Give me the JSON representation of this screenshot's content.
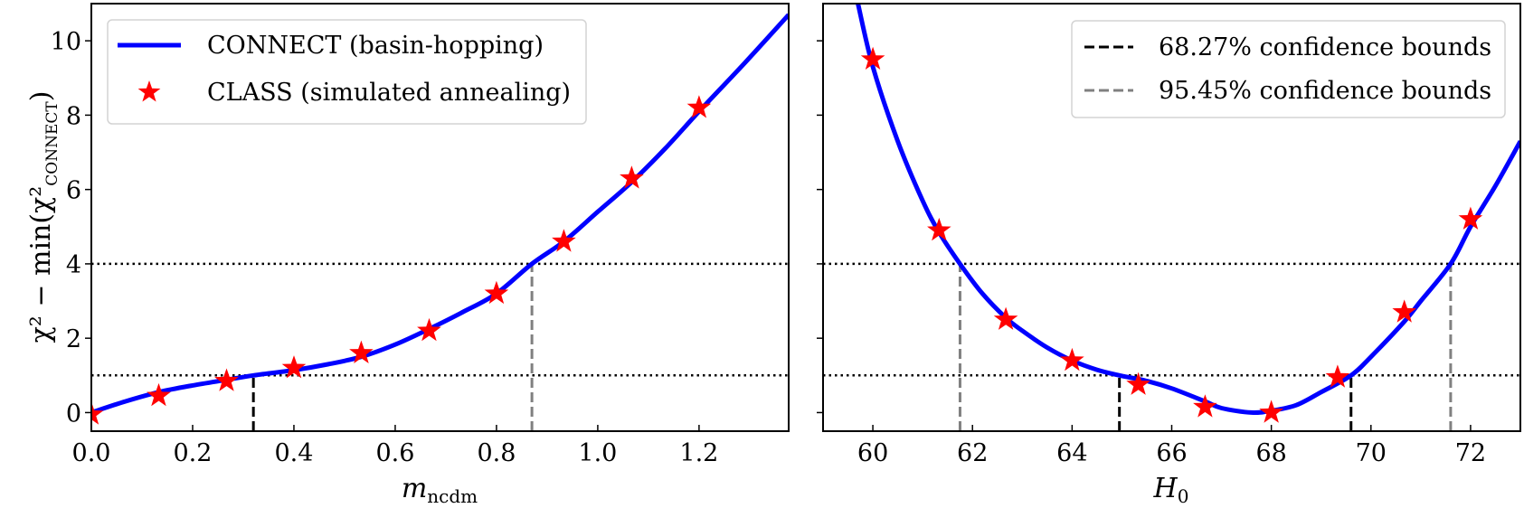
{
  "colors": {
    "curve": "#0000ff",
    "stars": "#ff0000",
    "bound68": "#000000",
    "bound95": "#808080",
    "reference_lines": "#000000"
  },
  "chart_data": [
    {
      "type": "line",
      "xlabel_main": "m",
      "xlabel_sub": "ncdm",
      "ylabel_main": "χ² − min(χ²",
      "ylabel_sub": "CONNECT",
      "ylabel_close": ")",
      "xlim": [
        0,
        1.377
      ],
      "ylim": [
        -0.5,
        11
      ],
      "xticks": [
        "0.0",
        "0.2",
        "0.4",
        "0.6",
        "0.8",
        "1.0",
        "1.2"
      ],
      "yticks": [
        "0",
        "2",
        "4",
        "6",
        "8",
        "10"
      ],
      "show_ytick_labels": true,
      "grid": false,
      "legend_position": "top-left",
      "legend": [
        {
          "type": "line",
          "label": "CONNECT (basin-hopping)"
        },
        {
          "type": "star",
          "label": "CLASS (simulated annealing)"
        }
      ],
      "reference_lines_y": [
        1,
        4
      ],
      "bounds_68": [
        0.32
      ],
      "bounds_95": [
        0.87
      ],
      "series": [
        {
          "kind": "curve",
          "x": [
            0,
            0.067,
            0.133,
            0.2,
            0.267,
            0.32,
            0.4,
            0.467,
            0.533,
            0.6,
            0.667,
            0.733,
            0.8,
            0.87,
            0.933,
            1.0,
            1.067,
            1.133,
            1.2,
            1.29,
            1.377
          ],
          "y": [
            0,
            0.3,
            0.55,
            0.73,
            0.88,
            1.0,
            1.14,
            1.3,
            1.5,
            1.83,
            2.25,
            2.7,
            3.2,
            4.0,
            4.6,
            5.4,
            6.2,
            7.1,
            8.1,
            9.4,
            10.7
          ]
        },
        {
          "kind": "stars",
          "x": [
            0,
            0.133,
            0.267,
            0.4,
            0.533,
            0.667,
            0.8,
            0.933,
            1.067,
            1.2
          ],
          "y": [
            -0.05,
            0.45,
            0.85,
            1.2,
            1.6,
            2.2,
            3.2,
            4.6,
            6.3,
            8.2
          ]
        }
      ]
    },
    {
      "type": "line",
      "xlabel_main": "H",
      "xlabel_sub": "0",
      "xlim": [
        59,
        73
      ],
      "ylim": [
        -0.5,
        11
      ],
      "xticks": [
        "60",
        "62",
        "64",
        "66",
        "68",
        "70",
        "72"
      ],
      "yticks": [
        "0",
        "2",
        "4",
        "6",
        "8",
        "10"
      ],
      "show_ytick_labels": false,
      "grid": false,
      "legend_position": "top-right",
      "legend": [
        {
          "type": "dash-black",
          "label": "68.27% confidence bounds"
        },
        {
          "type": "dash-gray",
          "label": "95.45% confidence bounds"
        }
      ],
      "reference_lines_y": [
        1,
        4
      ],
      "bounds_68": [
        64.95,
        69.6
      ],
      "bounds_95": [
        61.75,
        71.6
      ],
      "series": [
        {
          "kind": "curve",
          "x": [
            59.7,
            60,
            60.5,
            61,
            61.33,
            61.75,
            62.2,
            62.67,
            63,
            63.5,
            64,
            64.5,
            64.95,
            65.5,
            66,
            66.67,
            67,
            67.6,
            68,
            68.5,
            69,
            69.6,
            70,
            70.67,
            71,
            71.6,
            72,
            72.5,
            73
          ],
          "y": [
            11,
            9.3,
            7.3,
            5.7,
            4.85,
            4.0,
            3.2,
            2.55,
            2.2,
            1.75,
            1.4,
            1.15,
            1.0,
            0.85,
            0.65,
            0.3,
            0.12,
            0.0,
            0.05,
            0.2,
            0.55,
            1.0,
            1.5,
            2.45,
            3.0,
            4.0,
            5.0,
            6.1,
            7.3
          ]
        },
        {
          "kind": "stars",
          "x": [
            60,
            61.33,
            62.67,
            64,
            65.33,
            66.67,
            68,
            69.33,
            70.67,
            72
          ],
          "y": [
            9.5,
            4.9,
            2.5,
            1.4,
            0.75,
            0.15,
            0.0,
            0.95,
            2.7,
            5.2
          ]
        }
      ]
    }
  ]
}
